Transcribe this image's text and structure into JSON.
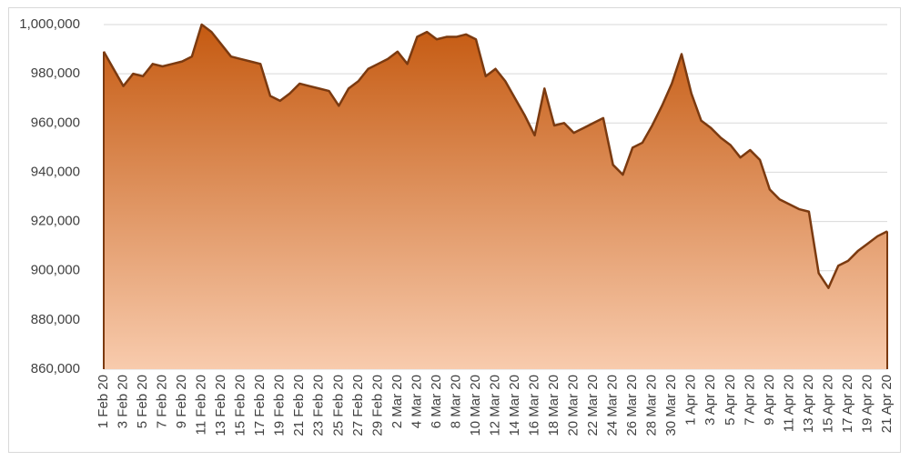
{
  "chart_data": {
    "type": "area",
    "categories": [
      "1 Feb 20",
      null,
      "3 Feb 20",
      null,
      "5 Feb 20",
      null,
      "7 Feb 20",
      null,
      "9 Feb 20",
      null,
      "11 Feb 20",
      null,
      "13 Feb 20",
      null,
      "15 Feb 20",
      null,
      "17 Feb 20",
      null,
      "19 Feb 20",
      null,
      "21 Feb 20",
      null,
      "23 Feb 20",
      null,
      "25 Feb 20",
      null,
      "27 Feb 20",
      null,
      "29 Feb 20",
      null,
      "2 Mar 20",
      null,
      "4 Mar 20",
      null,
      "6 Mar 20",
      null,
      "8 Mar 20",
      null,
      "10 Mar 20",
      null,
      "12 Mar 20",
      null,
      "14 Mar 20",
      null,
      "16 Mar 20",
      null,
      "18 Mar 20",
      null,
      "20 Mar 20",
      null,
      "22 Mar 20",
      null,
      "24 Mar 20",
      null,
      "26 Mar 20",
      null,
      "28 Mar 20",
      null,
      "30 Mar 20",
      null,
      "1 Apr 20",
      null,
      "3 Apr 20",
      null,
      "5 Apr 20",
      null,
      "7 Apr 20",
      null,
      "9 Apr 20",
      null,
      "11 Apr 20",
      null,
      "13 Apr 20",
      null,
      "15 Apr 20",
      null,
      "17 Apr 20",
      null,
      "19 Apr 20",
      null,
      "21 Apr 20"
    ],
    "values": [
      989000,
      982000,
      975000,
      980000,
      979000,
      984000,
      983000,
      984000,
      985000,
      987000,
      1000000,
      997000,
      992000,
      987000,
      986000,
      985000,
      984000,
      971000,
      969000,
      972000,
      976000,
      975000,
      974000,
      973000,
      967000,
      974000,
      977000,
      982000,
      984000,
      986000,
      989000,
      984000,
      995000,
      997000,
      994000,
      995000,
      995000,
      996000,
      994000,
      979000,
      982000,
      977000,
      970000,
      963000,
      955000,
      974000,
      959000,
      960000,
      956000,
      958000,
      960000,
      962000,
      943000,
      939000,
      950000,
      952000,
      959000,
      967000,
      976000,
      988000,
      972000,
      961000,
      958000,
      954000,
      951000,
      946000,
      949000,
      945000,
      933000,
      929000,
      927000,
      925000,
      924000,
      899000,
      893000,
      902000,
      904000,
      908000,
      911000,
      914000,
      916000
    ],
    "color": "#7b3a10",
    "fill": [
      "#c55a11",
      "#f8cbad"
    ],
    "ylim": [
      860000,
      1000000
    ],
    "yticks": [
      {
        "value": 860000,
        "label": "860,000"
      },
      {
        "value": 880000,
        "label": "880,000"
      },
      {
        "value": 900000,
        "label": "900,000"
      },
      {
        "value": 920000,
        "label": "920,000"
      },
      {
        "value": 940000,
        "label": "940,000"
      },
      {
        "value": 960000,
        "label": "960,000"
      },
      {
        "value": 980000,
        "label": "980,000"
      },
      {
        "value": 1000000,
        "label": "1,000,000"
      }
    ],
    "grid": true
  }
}
